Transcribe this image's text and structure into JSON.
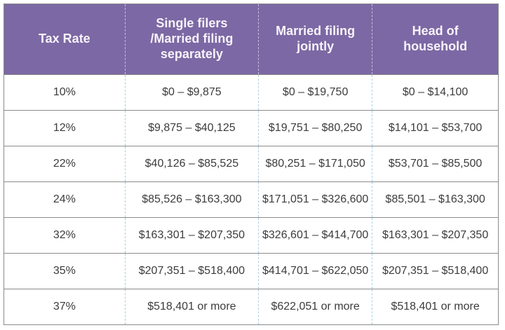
{
  "colors": {
    "header_bg": "#7c68a4",
    "header_text": "#f7f3fa",
    "header_dash": "#c9c0dc",
    "body_text": "#3c3c3c",
    "grid_line": "#8b8b8b",
    "column_dash": "#aecde2"
  },
  "chart_data": {
    "type": "table",
    "columns": [
      "Tax Rate",
      "Single filers /Married filing separately",
      "Married filing jointly",
      "Head of household"
    ],
    "rows": [
      [
        "10%",
        "$0 – $9,875",
        "$0 – $19,750",
        "$0 – $14,100"
      ],
      [
        "12%",
        "$9,875 – $40,125",
        "$19,751 – $80,250",
        "$14,101 – $53,700"
      ],
      [
        "22%",
        "$40,126 – $85,525",
        "$80,251 – $171,050",
        "$53,701 – $85,500"
      ],
      [
        "24%",
        "$85,526 – $163,300",
        "$171,051 – $326,600",
        "$85,501 – $163,300"
      ],
      [
        "32%",
        "$163,301 – $207,350",
        "$326,601 – $414,700",
        "$163,301 – $207,350"
      ],
      [
        "35%",
        "$207,351 – $518,400",
        "$414,701 – $622,050",
        "$207,351 – $518,400"
      ],
      [
        "37%",
        "$518,401 or more",
        "$622,051 or more",
        "$518,401 or more"
      ]
    ]
  }
}
